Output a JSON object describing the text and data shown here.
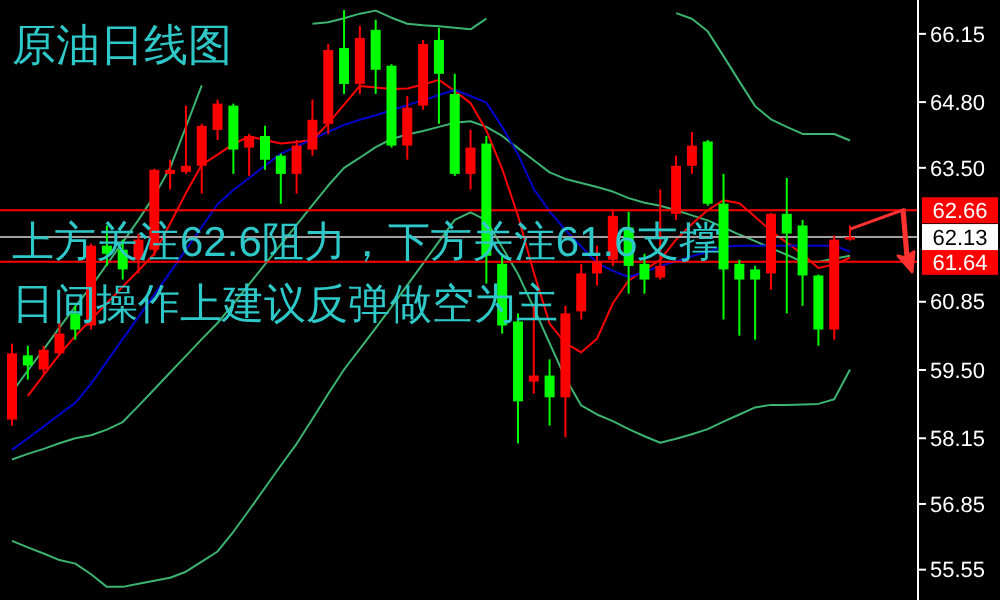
{
  "chart_data": {
    "type": "candlestick",
    "title": "原油日线图",
    "annotations": [
      "上方关注62.6阻力，下方关注61.6支撑",
      "日间操作上建议反弹做空为主"
    ],
    "categories": [
      null,
      null,
      null,
      null,
      null,
      null,
      null,
      null,
      null,
      null,
      null,
      null,
      null,
      null,
      null,
      null,
      null,
      null,
      null,
      null,
      null,
      null,
      null,
      null,
      null,
      null,
      null,
      null,
      null,
      null,
      null,
      null,
      null,
      null,
      null,
      null,
      null,
      null,
      null,
      null,
      null,
      null,
      null,
      null,
      null,
      null,
      null,
      null,
      null,
      null,
      null,
      null,
      null,
      null
    ],
    "ohlc": [
      [
        58.52,
        60.02,
        58.4,
        59.83
      ],
      [
        59.79,
        59.98,
        59.31,
        59.59
      ],
      [
        59.51,
        59.98,
        59.43,
        59.9
      ],
      [
        59.83,
        60.5,
        59.79,
        60.22
      ],
      [
        60.62,
        60.77,
        60.1,
        60.3
      ],
      [
        60.38,
        62.0,
        60.3,
        61.96
      ],
      [
        61.96,
        62.36,
        61.56,
        61.8
      ],
      [
        61.88,
        62.08,
        61.29,
        61.49
      ],
      [
        61.68,
        62.2,
        61.41,
        62.08
      ],
      [
        61.88,
        63.48,
        61.76,
        63.46
      ],
      [
        63.38,
        63.66,
        63.07,
        63.46
      ],
      [
        63.42,
        64.73,
        63.38,
        63.54
      ],
      [
        63.54,
        64.37,
        62.99,
        64.33
      ],
      [
        64.25,
        64.85,
        64.05,
        64.77
      ],
      [
        64.73,
        64.77,
        63.38,
        63.86
      ],
      [
        63.9,
        64.17,
        63.34,
        64.13
      ],
      [
        64.13,
        64.33,
        63.46,
        63.66
      ],
      [
        63.74,
        63.78,
        62.79,
        63.38
      ],
      [
        63.38,
        64.05,
        62.99,
        63.94
      ],
      [
        63.86,
        64.85,
        63.74,
        64.45
      ],
      [
        64.37,
        65.95,
        64.17,
        65.83
      ],
      [
        65.87,
        66.62,
        64.96,
        65.16
      ],
      [
        65.16,
        66.31,
        64.96,
        66.07
      ],
      [
        66.23,
        66.43,
        64.96,
        65.44
      ],
      [
        65.52,
        65.55,
        63.9,
        63.94
      ],
      [
        63.94,
        64.92,
        63.66,
        64.69
      ],
      [
        64.73,
        66.03,
        64.65,
        65.95
      ],
      [
        66.03,
        66.27,
        64.37,
        65.36
      ],
      [
        64.96,
        65.36,
        63.34,
        63.38
      ],
      [
        63.38,
        64.25,
        63.07,
        63.9
      ],
      [
        63.98,
        64.13,
        61.21,
        61.76
      ],
      [
        61.6,
        61.8,
        60.22,
        60.38
      ],
      [
        60.46,
        60.62,
        58.05,
        58.88
      ],
      [
        59.27,
        60.77,
        59.03,
        59.39
      ],
      [
        59.39,
        59.71,
        58.4,
        58.96
      ],
      [
        58.96,
        60.77,
        58.17,
        60.62
      ],
      [
        60.66,
        61.6,
        60.5,
        61.41
      ],
      [
        61.41,
        61.96,
        61.17,
        61.64
      ],
      [
        61.68,
        62.67,
        61.56,
        62.55
      ],
      [
        62.32,
        62.63,
        61.01,
        61.56
      ],
      [
        61.6,
        61.8,
        61.01,
        61.29
      ],
      [
        61.33,
        63.07,
        61.29,
        61.56
      ],
      [
        62.59,
        63.74,
        62.47,
        63.54
      ],
      [
        63.54,
        64.21,
        63.38,
        63.94
      ],
      [
        64.02,
        64.05,
        62.75,
        62.79
      ],
      [
        62.79,
        63.38,
        60.5,
        61.49
      ],
      [
        61.6,
        61.68,
        60.18,
        61.29
      ],
      [
        61.49,
        61.56,
        60.1,
        61.29
      ],
      [
        61.41,
        62.61,
        61.09,
        62.59
      ],
      [
        62.59,
        63.3,
        60.62,
        62.2
      ],
      [
        62.36,
        62.47,
        60.77,
        61.37
      ],
      [
        61.37,
        61.39,
        59.98,
        60.3
      ],
      [
        60.3,
        62.16,
        60.1,
        62.08
      ],
      [
        62.08,
        62.36,
        62.06,
        62.13
      ]
    ],
    "colors": [
      "#ff0000",
      "#00ff00",
      "#ff0000",
      "#ff0000",
      "#00ff00",
      "#ff0000",
      "#00ff00",
      "#00ff00",
      "#ff0000",
      "#ff0000",
      "#ff0000",
      "#ff0000",
      "#ff0000",
      "#ff0000",
      "#00ff00",
      "#ff0000",
      "#00ff00",
      "#00ff00",
      "#ff0000",
      "#ff0000",
      "#ff0000",
      "#00ff00",
      "#ff0000",
      "#00ff00",
      "#00ff00",
      "#ff0000",
      "#ff0000",
      "#00ff00",
      "#00ff00",
      "#ff0000",
      "#00ff00",
      "#00ff00",
      "#00ff00",
      "#ff0000",
      "#00ff00",
      "#ff0000",
      "#ff0000",
      "#ff0000",
      "#ff0000",
      "#00ff00",
      "#00ff00",
      "#ff0000",
      "#ff0000",
      "#ff0000",
      "#00ff00",
      "#00ff00",
      "#00ff00",
      "#00ff00",
      "#ff0000",
      "#00ff00",
      "#00ff00",
      "#00ff00",
      "#ff0000",
      "#ff0000"
    ],
    "series": [
      {
        "type": "line",
        "color": "#3cb371",
        "values": [
          59.06,
          59.49,
          59.91,
          60.34,
          60.76,
          61.15,
          61.59,
          62.03,
          62.47,
          62.95,
          63.5,
          64.31,
          65.13,
          null,
          null,
          null,
          null,
          null,
          null,
          66.35,
          66.38,
          66.46,
          66.55,
          66.61,
          66.47,
          66.35,
          66.32,
          66.3,
          66.27,
          66.24,
          66.45,
          null,
          null,
          null,
          null,
          null,
          null,
          null,
          null,
          null,
          null,
          null,
          66.56,
          66.45,
          66.2,
          65.71,
          65.21,
          64.72,
          64.46,
          64.31,
          64.17,
          64.17,
          64.17,
          64.04
        ]
      },
      {
        "type": "line",
        "color": "#3cb371",
        "values": [
          57.73,
          57.84,
          57.94,
          58.05,
          58.15,
          58.21,
          58.32,
          58.47,
          58.79,
          59.12,
          59.45,
          59.78,
          60.11,
          60.43,
          60.81,
          61.2,
          61.59,
          61.98,
          62.37,
          62.76,
          63.15,
          63.5,
          63.7,
          63.91,
          64.07,
          64.16,
          64.23,
          64.31,
          64.39,
          64.42,
          64.31,
          64.13,
          63.89,
          63.65,
          63.41,
          63.28,
          63.2,
          63.12,
          63.03,
          62.9,
          62.81,
          62.75,
          62.66,
          62.56,
          62.46,
          62.32,
          62.18,
          62.05,
          61.91,
          61.78,
          61.64,
          61.64,
          61.7,
          61.76
        ]
      },
      {
        "type": "line",
        "color": "#3cb371",
        "values": [
          56.12,
          55.99,
          55.87,
          55.74,
          55.67,
          55.46,
          55.21,
          55.21,
          55.27,
          55.33,
          55.39,
          55.51,
          55.71,
          55.91,
          56.3,
          56.73,
          57.17,
          57.61,
          58.04,
          58.53,
          59.03,
          59.51,
          59.92,
          60.33,
          60.75,
          61.18,
          61.61,
          62.04,
          62.47,
          62.62,
          62.46,
          61.93,
          61.4,
          60.73,
          60.03,
          59.34,
          58.8,
          58.62,
          58.49,
          58.33,
          58.19,
          58.06,
          58.14,
          58.23,
          58.33,
          58.48,
          58.62,
          58.76,
          58.81,
          58.81,
          58.82,
          58.83,
          58.92,
          59.51
        ]
      },
      {
        "type": "line",
        "color": "#ff0000",
        "values": [
          null,
          58.99,
          59.4,
          59.81,
          60.17,
          60.5,
          60.82,
          61.15,
          61.47,
          61.8,
          62.4,
          63.0,
          63.56,
          63.76,
          63.97,
          64.12,
          64.05,
          63.98,
          64.01,
          64.05,
          64.38,
          64.75,
          65.12,
          65.09,
          65.06,
          65.07,
          65.15,
          65.24,
          65.02,
          64.78,
          64.24,
          63.48,
          62.55,
          61.43,
          60.42,
          60.03,
          59.85,
          60.12,
          60.82,
          61.27,
          61.48,
          61.68,
          62.08,
          62.39,
          62.66,
          62.86,
          62.8,
          62.53,
          62.25,
          62.02,
          61.79,
          61.52,
          61.59,
          61.72
        ]
      },
      {
        "type": "line",
        "color": "#0000cc",
        "values": [
          57.92,
          58.15,
          58.38,
          58.62,
          58.85,
          59.23,
          59.67,
          60.11,
          60.55,
          60.99,
          61.43,
          61.88,
          62.33,
          62.78,
          63.06,
          63.3,
          63.54,
          63.78,
          63.92,
          64.07,
          64.21,
          64.35,
          64.45,
          64.54,
          64.64,
          64.74,
          64.84,
          64.94,
          65.04,
          64.92,
          64.79,
          64.31,
          63.77,
          63.08,
          62.64,
          62.27,
          61.94,
          61.62,
          61.46,
          61.34,
          61.44,
          61.56,
          61.65,
          61.75,
          61.84,
          61.94,
          61.96,
          61.96,
          61.96,
          61.96,
          61.96,
          61.96,
          61.96,
          61.84
        ]
      }
    ],
    "ylim": [
      54.95,
      66.82
    ],
    "yticks": [
      66.15,
      {
        "value": 64.8,
        "label": "64.80"
      },
      {
        "value": 63.5,
        "label": "63.50"
      },
      60.85,
      {
        "value": 59.5,
        "label": "59.50"
      },
      58.15,
      56.85,
      55.55
    ],
    "ref_lines": [
      {
        "axis": "y",
        "value": 62.66,
        "label": "62.66",
        "color": "#ff0000"
      },
      {
        "axis": "y",
        "value": 61.64,
        "label": "61.64",
        "color": "#ff0000"
      },
      {
        "axis": "y",
        "value": 62.13,
        "label": "62.13",
        "color": "#a0a0a0"
      }
    ],
    "tick_labels": "y",
    "grid": false
  }
}
